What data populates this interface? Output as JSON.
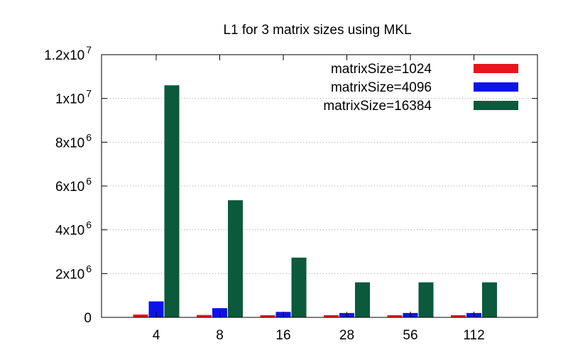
{
  "chart_data": {
    "type": "bar",
    "title": "L1 for 3 matrix sizes using MKL",
    "xlabel": "",
    "ylabel": "",
    "categories": [
      "4",
      "8",
      "16",
      "28",
      "56",
      "112"
    ],
    "ylim": [
      0,
      12000000
    ],
    "yticks": [
      {
        "value": 0,
        "mant": "0",
        "exp": ""
      },
      {
        "value": 2000000,
        "mant": "2x10",
        "exp": "6"
      },
      {
        "value": 4000000,
        "mant": "4x10",
        "exp": "6"
      },
      {
        "value": 6000000,
        "mant": "6x10",
        "exp": "6"
      },
      {
        "value": 8000000,
        "mant": "8x10",
        "exp": "6"
      },
      {
        "value": 10000000,
        "mant": "1x10",
        "exp": "7"
      },
      {
        "value": 12000000,
        "mant": "1.2x10",
        "exp": "7"
      }
    ],
    "grid": true,
    "legend_position": "top-right",
    "series": [
      {
        "name": "matrixSize=1024",
        "color": "#e8141b",
        "values": [
          130000,
          110000,
          100000,
          100000,
          100000,
          100000
        ]
      },
      {
        "name": "matrixSize=4096",
        "color": "#0b14e8",
        "values": [
          730000,
          420000,
          250000,
          200000,
          200000,
          200000
        ]
      },
      {
        "name": "matrixSize=16384",
        "color": "#0b5a3b",
        "values": [
          10600000,
          5350000,
          2730000,
          1600000,
          1600000,
          1600000
        ]
      }
    ]
  }
}
